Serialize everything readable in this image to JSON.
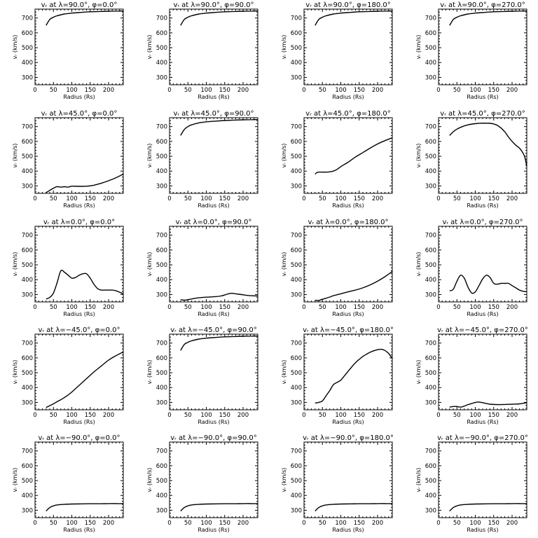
{
  "chart_data": [
    {
      "type": "line",
      "title": "vᵣ at λ=90.0°, φ=0.0°",
      "xlabel": "Radius (Rs)",
      "ylabel": "vᵣ (km/s)",
      "xlim": [
        0,
        240
      ],
      "ylim": [
        250,
        760
      ],
      "xticks": [
        0,
        50,
        100,
        150,
        200
      ],
      "yticks": [
        300,
        400,
        500,
        600,
        700
      ],
      "x": [
        30,
        40,
        50,
        60,
        80,
        100,
        125,
        150,
        175,
        200,
        225,
        240
      ],
      "y": [
        650,
        690,
        705,
        715,
        727,
        733,
        738,
        742,
        744,
        746,
        747,
        748
      ]
    },
    {
      "type": "line",
      "title": "vᵣ at λ=90.0°, φ=90.0°",
      "xlabel": "Radius (Rs)",
      "ylabel": "vᵣ (km/s)",
      "xlim": [
        0,
        240
      ],
      "ylim": [
        250,
        760
      ],
      "xticks": [
        0,
        50,
        100,
        150,
        200
      ],
      "yticks": [
        300,
        400,
        500,
        600,
        700
      ],
      "x": [
        30,
        40,
        50,
        60,
        80,
        100,
        125,
        150,
        175,
        200,
        225,
        240
      ],
      "y": [
        650,
        690,
        705,
        715,
        727,
        733,
        738,
        742,
        744,
        746,
        747,
        748
      ]
    },
    {
      "type": "line",
      "title": "vᵣ at λ=90.0°, φ=180.0°",
      "xlabel": "Radius (Rs)",
      "ylabel": "vᵣ (km/s)",
      "xlim": [
        0,
        240
      ],
      "ylim": [
        250,
        760
      ],
      "xticks": [
        0,
        50,
        100,
        150,
        200
      ],
      "yticks": [
        300,
        400,
        500,
        600,
        700
      ],
      "x": [
        30,
        40,
        50,
        60,
        80,
        100,
        125,
        150,
        175,
        200,
        225,
        240
      ],
      "y": [
        650,
        690,
        705,
        715,
        727,
        733,
        738,
        742,
        744,
        746,
        747,
        748
      ]
    },
    {
      "type": "line",
      "title": "vᵣ at λ=90.0°, φ=270.0°",
      "xlabel": "Radius (Rs)",
      "ylabel": "vᵣ (km/s)",
      "xlim": [
        0,
        240
      ],
      "ylim": [
        250,
        760
      ],
      "xticks": [
        0,
        50,
        100,
        150,
        200
      ],
      "yticks": [
        300,
        400,
        500,
        600,
        700
      ],
      "x": [
        30,
        40,
        50,
        60,
        80,
        100,
        125,
        150,
        175,
        200,
        225,
        240
      ],
      "y": [
        650,
        690,
        705,
        715,
        727,
        733,
        738,
        742,
        744,
        746,
        747,
        748
      ]
    },
    {
      "type": "line",
      "title": "vᵣ at λ=45.0°, φ=0.0°",
      "xlabel": "Radius (Rs)",
      "ylabel": "vᵣ (km/s)",
      "xlim": [
        0,
        240
      ],
      "ylim": [
        250,
        760
      ],
      "xticks": [
        0,
        50,
        100,
        150,
        200
      ],
      "yticks": [
        300,
        400,
        500,
        600,
        700
      ],
      "x": [
        30,
        40,
        50,
        60,
        70,
        80,
        90,
        100,
        120,
        140,
        160,
        180,
        200,
        220,
        240
      ],
      "y": [
        255,
        270,
        285,
        295,
        292,
        295,
        292,
        298,
        297,
        298,
        305,
        318,
        335,
        355,
        380
      ]
    },
    {
      "type": "line",
      "title": "vᵣ at λ=45.0°, φ=90.0°",
      "xlabel": "Radius (Rs)",
      "ylabel": "vᵣ (km/s)",
      "xlim": [
        0,
        240
      ],
      "ylim": [
        250,
        760
      ],
      "xticks": [
        0,
        50,
        100,
        150,
        200
      ],
      "yticks": [
        300,
        400,
        500,
        600,
        700
      ],
      "x": [
        30,
        40,
        50,
        60,
        80,
        100,
        125,
        150,
        175,
        200,
        225,
        240
      ],
      "y": [
        640,
        680,
        700,
        712,
        725,
        732,
        737,
        741,
        744,
        746,
        747,
        748
      ]
    },
    {
      "type": "line",
      "title": "vᵣ at λ=45.0°, φ=180.0°",
      "xlabel": "Radius (Rs)",
      "ylabel": "vᵣ (km/s)",
      "xlim": [
        0,
        240
      ],
      "ylim": [
        250,
        760
      ],
      "xticks": [
        0,
        50,
        100,
        150,
        200
      ],
      "yticks": [
        300,
        400,
        500,
        600,
        700
      ],
      "x": [
        30,
        35,
        40,
        50,
        60,
        70,
        80,
        90,
        100,
        120,
        140,
        160,
        180,
        200,
        220,
        240
      ],
      "y": [
        380,
        390,
        393,
        393,
        393,
        395,
        400,
        412,
        430,
        460,
        495,
        525,
        555,
        583,
        605,
        625
      ]
    },
    {
      "type": "line",
      "title": "vᵣ at λ=45.0°, φ=270.0°",
      "xlabel": "Radius (Rs)",
      "ylabel": "vᵣ (km/s)",
      "xlim": [
        0,
        240
      ],
      "ylim": [
        250,
        760
      ],
      "xticks": [
        0,
        50,
        100,
        150,
        200
      ],
      "yticks": [
        300,
        400,
        500,
        600,
        700
      ],
      "x": [
        30,
        40,
        50,
        60,
        80,
        100,
        120,
        140,
        150,
        160,
        170,
        180,
        190,
        200,
        210,
        220,
        230,
        235,
        240
      ],
      "y": [
        640,
        665,
        683,
        695,
        712,
        720,
        723,
        722,
        718,
        708,
        690,
        665,
        630,
        600,
        575,
        555,
        520,
        490,
        430
      ]
    },
    {
      "type": "line",
      "title": "vᵣ at λ=0.0°, φ=0.0°",
      "xlabel": "Radius (Rs)",
      "ylabel": "vᵣ (km/s)",
      "xlim": [
        0,
        240
      ],
      "ylim": [
        250,
        760
      ],
      "xticks": [
        0,
        50,
        100,
        150,
        200
      ],
      "yticks": [
        300,
        400,
        500,
        600,
        700
      ],
      "x": [
        30,
        40,
        50,
        60,
        70,
        80,
        90,
        100,
        110,
        120,
        130,
        140,
        150,
        160,
        170,
        180,
        190,
        200,
        210,
        220,
        230,
        240
      ],
      "y": [
        270,
        280,
        310,
        380,
        460,
        450,
        430,
        410,
        415,
        430,
        440,
        440,
        410,
        370,
        340,
        330,
        330,
        330,
        330,
        325,
        315,
        305
      ]
    },
    {
      "type": "line",
      "title": "vᵣ at λ=0.0°, φ=90.0°",
      "xlabel": "Radius (Rs)",
      "ylabel": "vᵣ (km/s)",
      "xlim": [
        0,
        240
      ],
      "ylim": [
        250,
        760
      ],
      "xticks": [
        0,
        50,
        100,
        150,
        200
      ],
      "yticks": [
        300,
        400,
        500,
        600,
        700
      ],
      "x": [
        30,
        40,
        50,
        60,
        80,
        100,
        120,
        140,
        160,
        170,
        180,
        200,
        220,
        240
      ],
      "y": [
        265,
        262,
        265,
        270,
        278,
        282,
        285,
        290,
        305,
        308,
        305,
        298,
        292,
        290
      ]
    },
    {
      "type": "line",
      "title": "vᵣ at λ=0.0°, φ=180.0°",
      "xlabel": "Radius (Rs)",
      "ylabel": "vᵣ (km/s)",
      "xlim": [
        0,
        240
      ],
      "ylim": [
        250,
        760
      ],
      "xticks": [
        0,
        50,
        100,
        150,
        200
      ],
      "yticks": [
        300,
        400,
        500,
        600,
        700
      ],
      "x": [
        30,
        40,
        50,
        60,
        70,
        80,
        100,
        120,
        140,
        160,
        180,
        200,
        220,
        240
      ],
      "y": [
        262,
        260,
        268,
        275,
        283,
        292,
        305,
        318,
        330,
        345,
        365,
        390,
        420,
        455
      ]
    },
    {
      "type": "line",
      "title": "vᵣ at λ=0.0°, φ=270.0°",
      "xlabel": "Radius (Rs)",
      "ylabel": "vᵣ (km/s)",
      "xlim": [
        0,
        240
      ],
      "ylim": [
        250,
        760
      ],
      "xticks": [
        0,
        50,
        100,
        150,
        200
      ],
      "yticks": [
        300,
        400,
        500,
        600,
        700
      ],
      "x": [
        30,
        40,
        50,
        60,
        70,
        80,
        90,
        100,
        110,
        120,
        130,
        140,
        150,
        160,
        170,
        180,
        190,
        200,
        210,
        220,
        230,
        240
      ],
      "y": [
        325,
        335,
        390,
        430,
        410,
        350,
        310,
        318,
        360,
        405,
        430,
        415,
        375,
        370,
        375,
        375,
        375,
        360,
        345,
        330,
        322,
        318
      ]
    },
    {
      "type": "line",
      "title": "vᵣ at λ=−45.0°, φ=0.0°",
      "xlabel": "Radius (Rs)",
      "ylabel": "vᵣ (km/s)",
      "xlim": [
        0,
        240
      ],
      "ylim": [
        250,
        760
      ],
      "xticks": [
        0,
        50,
        100,
        150,
        200
      ],
      "yticks": [
        300,
        400,
        500,
        600,
        700
      ],
      "x": [
        30,
        40,
        50,
        60,
        70,
        80,
        90,
        100,
        120,
        140,
        160,
        180,
        200,
        220,
        240
      ],
      "y": [
        265,
        278,
        290,
        305,
        318,
        333,
        350,
        370,
        415,
        460,
        505,
        545,
        585,
        615,
        640
      ]
    },
    {
      "type": "line",
      "title": "vᵣ at λ=−45.0°, φ=90.0°",
      "xlabel": "Radius (Rs)",
      "ylabel": "vᵣ (km/s)",
      "xlim": [
        0,
        240
      ],
      "ylim": [
        250,
        760
      ],
      "xticks": [
        0,
        50,
        100,
        150,
        200
      ],
      "yticks": [
        300,
        400,
        500,
        600,
        700
      ],
      "x": [
        30,
        40,
        50,
        60,
        80,
        100,
        125,
        150,
        175,
        200,
        225,
        240
      ],
      "y": [
        650,
        690,
        705,
        715,
        727,
        733,
        738,
        742,
        744,
        746,
        747,
        748
      ]
    },
    {
      "type": "line",
      "title": "vᵣ at λ=−45.0°, φ=180.0°",
      "xlabel": "Radius (Rs)",
      "ylabel": "vᵣ (km/s)",
      "xlim": [
        0,
        240
      ],
      "ylim": [
        250,
        760
      ],
      "xticks": [
        0,
        50,
        100,
        150,
        200
      ],
      "yticks": [
        300,
        400,
        500,
        600,
        700
      ],
      "x": [
        30,
        40,
        50,
        60,
        70,
        80,
        90,
        100,
        110,
        120,
        130,
        140,
        150,
        160,
        170,
        180,
        190,
        200,
        210,
        220,
        230,
        240
      ],
      "y": [
        295,
        300,
        310,
        345,
        380,
        420,
        435,
        450,
        480,
        510,
        540,
        568,
        590,
        610,
        625,
        638,
        648,
        655,
        658,
        650,
        630,
        595
      ]
    },
    {
      "type": "line",
      "title": "vᵣ at λ=−45.0°, φ=270.0°",
      "xlabel": "Radius (Rs)",
      "ylabel": "vᵣ (km/s)",
      "xlim": [
        0,
        240
      ],
      "ylim": [
        250,
        760
      ],
      "xticks": [
        0,
        50,
        100,
        150,
        200
      ],
      "yticks": [
        300,
        400,
        500,
        600,
        700
      ],
      "x": [
        30,
        40,
        50,
        60,
        70,
        80,
        90,
        100,
        110,
        120,
        130,
        140,
        160,
        180,
        200,
        220,
        240
      ],
      "y": [
        268,
        272,
        272,
        268,
        275,
        285,
        292,
        300,
        302,
        298,
        292,
        288,
        285,
        286,
        288,
        290,
        298
      ]
    },
    {
      "type": "line",
      "title": "vᵣ at λ=−90.0°, φ=0.0°",
      "xlabel": "Radius (Rs)",
      "ylabel": "vᵣ (km/s)",
      "xlim": [
        0,
        240
      ],
      "ylim": [
        250,
        760
      ],
      "xticks": [
        0,
        50,
        100,
        150,
        200
      ],
      "yticks": [
        300,
        400,
        500,
        600,
        700
      ],
      "x": [
        30,
        40,
        50,
        60,
        80,
        100,
        125,
        150,
        175,
        200,
        225,
        240
      ],
      "y": [
        295,
        318,
        330,
        336,
        340,
        342,
        343,
        344,
        344,
        345,
        345,
        345
      ]
    },
    {
      "type": "line",
      "title": "vᵣ at λ=−90.0°, φ=90.0°",
      "xlabel": "Radius (Rs)",
      "ylabel": "vᵣ (km/s)",
      "xlim": [
        0,
        240
      ],
      "ylim": [
        250,
        760
      ],
      "xticks": [
        0,
        50,
        100,
        150,
        200
      ],
      "yticks": [
        300,
        400,
        500,
        600,
        700
      ],
      "x": [
        30,
        40,
        50,
        60,
        80,
        100,
        125,
        150,
        175,
        200,
        225,
        240
      ],
      "y": [
        295,
        318,
        330,
        336,
        340,
        342,
        343,
        344,
        344,
        345,
        345,
        345
      ]
    },
    {
      "type": "line",
      "title": "vᵣ at λ=−90.0°, φ=180.0°",
      "xlabel": "Radius (Rs)",
      "ylabel": "vᵣ (km/s)",
      "xlim": [
        0,
        240
      ],
      "ylim": [
        250,
        760
      ],
      "xticks": [
        0,
        50,
        100,
        150,
        200
      ],
      "yticks": [
        300,
        400,
        500,
        600,
        700
      ],
      "x": [
        30,
        40,
        50,
        60,
        80,
        100,
        125,
        150,
        175,
        200,
        225,
        240
      ],
      "y": [
        295,
        318,
        330,
        336,
        340,
        342,
        343,
        344,
        344,
        345,
        345,
        345
      ]
    },
    {
      "type": "line",
      "title": "vᵣ at λ=−90.0°, φ=270.0°",
      "xlabel": "Radius (Rs)",
      "ylabel": "vᵣ (km/s)",
      "xlim": [
        0,
        240
      ],
      "ylim": [
        250,
        760
      ],
      "xticks": [
        0,
        50,
        100,
        150,
        200
      ],
      "yticks": [
        300,
        400,
        500,
        600,
        700
      ],
      "x": [
        30,
        40,
        50,
        60,
        80,
        100,
        125,
        150,
        175,
        200,
        225,
        240
      ],
      "y": [
        295,
        318,
        330,
        336,
        340,
        342,
        343,
        344,
        344,
        345,
        345,
        345
      ]
    }
  ]
}
